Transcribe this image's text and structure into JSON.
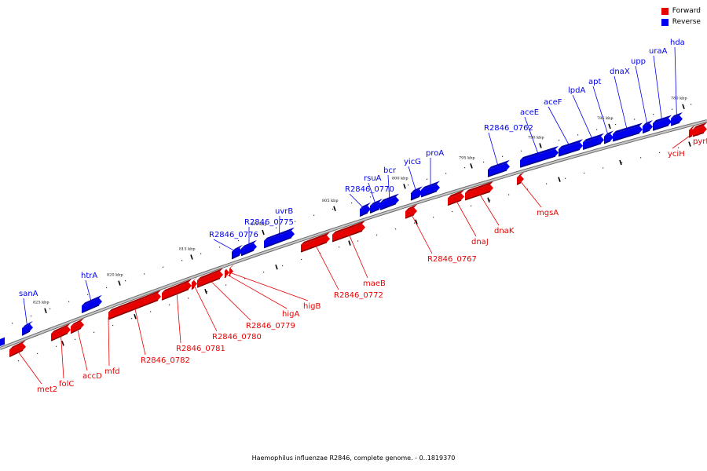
{
  "colors": {
    "forward": "#e80000",
    "reverse": "#0000ee",
    "backbone": "#999999"
  },
  "legend": [
    {
      "label": "Forward",
      "color": "#e80000"
    },
    {
      "label": "Reverse",
      "color": "#0000ee"
    }
  ],
  "caption": "Haemophilus influenzae R2846, complete genome. - 0..1819370",
  "genome_map": {
    "strands": [
      "Forward",
      "Reverse"
    ],
    "ticks": [
      "780 kbp",
      "785 kbp",
      "790 kbp",
      "795 kbp",
      "800 kbp",
      "805 kbp",
      "810 kbp",
      "815 kbp",
      "820 kbp",
      "825 kbp"
    ],
    "genes": [
      {
        "name": "hda",
        "strand": "Reverse"
      },
      {
        "name": "uraA",
        "strand": "Reverse"
      },
      {
        "name": "upp",
        "strand": "Reverse"
      },
      {
        "name": "dnaX",
        "strand": "Reverse"
      },
      {
        "name": "apt",
        "strand": "Reverse"
      },
      {
        "name": "lpdA",
        "strand": "Reverse"
      },
      {
        "name": "aceF",
        "strand": "Reverse"
      },
      {
        "name": "aceE",
        "strand": "Reverse"
      },
      {
        "name": "R2846_0762",
        "strand": "Reverse"
      },
      {
        "name": "proA",
        "strand": "Reverse"
      },
      {
        "name": "yicG",
        "strand": "Reverse"
      },
      {
        "name": "bcr",
        "strand": "Reverse"
      },
      {
        "name": "rsuA",
        "strand": "Reverse"
      },
      {
        "name": "R2846_0770",
        "strand": "Reverse"
      },
      {
        "name": "uvrB",
        "strand": "Reverse"
      },
      {
        "name": "R2846_0775",
        "strand": "Reverse"
      },
      {
        "name": "R2846_0776",
        "strand": "Reverse"
      },
      {
        "name": "htrA",
        "strand": "Reverse"
      },
      {
        "name": "sanA",
        "strand": "Reverse"
      },
      {
        "name": "pyrF",
        "strand": "Forward"
      },
      {
        "name": "yciH",
        "strand": "Forward"
      },
      {
        "name": "mgsA",
        "strand": "Forward"
      },
      {
        "name": "dnaK",
        "strand": "Forward"
      },
      {
        "name": "dnaJ",
        "strand": "Forward"
      },
      {
        "name": "R2846_0767",
        "strand": "Forward"
      },
      {
        "name": "maeB",
        "strand": "Forward"
      },
      {
        "name": "R2846_0772",
        "strand": "Forward"
      },
      {
        "name": "higB",
        "strand": "Forward"
      },
      {
        "name": "higA",
        "strand": "Forward"
      },
      {
        "name": "R2846_0779",
        "strand": "Forward"
      },
      {
        "name": "R2846_0780",
        "strand": "Forward"
      },
      {
        "name": "R2846_0781",
        "strand": "Forward"
      },
      {
        "name": "R2846_0782",
        "strand": "Forward"
      },
      {
        "name": "mfd",
        "strand": "Forward"
      },
      {
        "name": "accD",
        "strand": "Forward"
      },
      {
        "name": "folC",
        "strand": "Forward"
      },
      {
        "name": "met2",
        "strand": "Forward"
      }
    ]
  }
}
